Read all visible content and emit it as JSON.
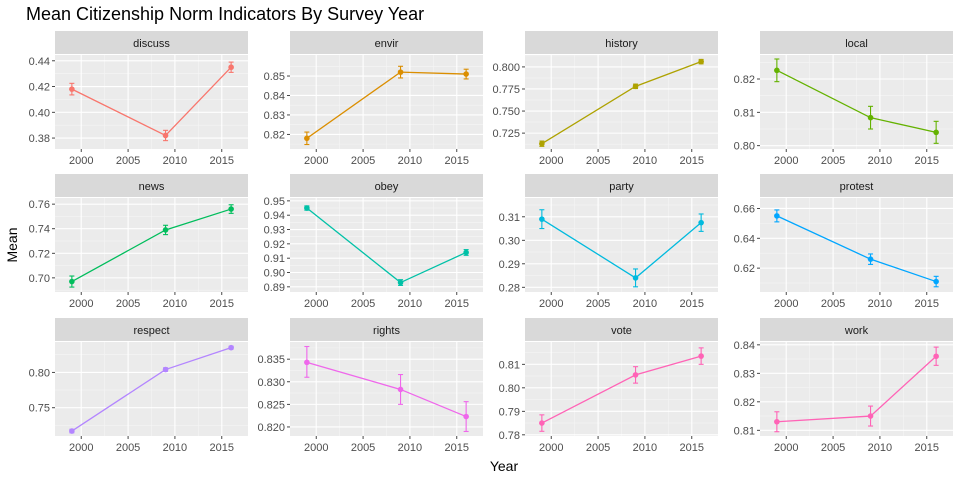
{
  "chart_data": {
    "type": "line",
    "title": "Mean Citizenship Norm Indicators By Survey Year",
    "xlabel": "Year",
    "ylabel": "Mean",
    "x": [
      1999,
      2009,
      2016
    ],
    "xticks": [
      2000,
      2005,
      2010,
      2015
    ],
    "xlim": [
      1997.2,
      2017.8
    ],
    "grid": true,
    "legend": "none",
    "facets": [
      {
        "name": "discuss",
        "color": "#F8766D",
        "ylim": [
          0.3715,
          0.4445
        ],
        "yticks": [
          0.38,
          0.4,
          0.42,
          0.44
        ],
        "ytick_labels": [
          "0.38",
          "0.40",
          "0.42",
          "0.44"
        ],
        "points": [
          {
            "x": 1999,
            "y": 0.418,
            "lo": 0.4135,
            "hi": 0.4225
          },
          {
            "x": 2009,
            "y": 0.382,
            "lo": 0.378,
            "hi": 0.386
          },
          {
            "x": 2016,
            "y": 0.435,
            "lo": 0.431,
            "hi": 0.439
          }
        ]
      },
      {
        "name": "envir",
        "color": "#DB8E00",
        "ylim": [
          0.8125,
          0.8608
        ],
        "yticks": [
          0.82,
          0.83,
          0.84,
          0.85
        ],
        "ytick_labels": [
          "0.82",
          "0.83",
          "0.84",
          "0.85"
        ],
        "points": [
          {
            "x": 1999,
            "y": 0.818,
            "lo": 0.8148,
            "hi": 0.8212
          },
          {
            "x": 2009,
            "y": 0.852,
            "lo": 0.849,
            "hi": 0.855
          },
          {
            "x": 2016,
            "y": 0.851,
            "lo": 0.8485,
            "hi": 0.8535
          }
        ]
      },
      {
        "name": "history",
        "color": "#AEA200",
        "ylim": [
          0.707,
          0.8135
        ],
        "yticks": [
          0.725,
          0.75,
          0.775,
          0.8
        ],
        "ytick_labels": [
          "0.725",
          "0.750",
          "0.775",
          "0.800"
        ],
        "points": [
          {
            "x": 1999,
            "y": 0.713,
            "lo": 0.71,
            "hi": 0.716
          },
          {
            "x": 2009,
            "y": 0.778,
            "lo": 0.7755,
            "hi": 0.7805
          },
          {
            "x": 2016,
            "y": 0.806,
            "lo": 0.8035,
            "hi": 0.8085
          }
        ]
      },
      {
        "name": "local",
        "color": "#64B200",
        "ylim": [
          0.799,
          0.8272
        ],
        "yticks": [
          0.8,
          0.81,
          0.82
        ],
        "ytick_labels": [
          "0.80",
          "0.81",
          "0.82"
        ],
        "points": [
          {
            "x": 1999,
            "y": 0.8226,
            "lo": 0.8192,
            "hi": 0.826
          },
          {
            "x": 2009,
            "y": 0.8084,
            "lo": 0.805,
            "hi": 0.8118
          },
          {
            "x": 2016,
            "y": 0.804,
            "lo": 0.8007,
            "hi": 0.8073
          }
        ]
      },
      {
        "name": "news",
        "color": "#00BD5C",
        "ylim": [
          0.6885,
          0.765
        ],
        "yticks": [
          0.7,
          0.72,
          0.74,
          0.76
        ],
        "ytick_labels": [
          "0.70",
          "0.72",
          "0.74",
          "0.76"
        ],
        "points": [
          {
            "x": 1999,
            "y": 0.697,
            "lo": 0.6925,
            "hi": 0.7015
          },
          {
            "x": 2009,
            "y": 0.739,
            "lo": 0.7352,
            "hi": 0.7428
          },
          {
            "x": 2016,
            "y": 0.756,
            "lo": 0.7525,
            "hi": 0.7595
          }
        ]
      },
      {
        "name": "obey",
        "color": "#00C1A7",
        "ylim": [
          0.8864,
          0.952
        ],
        "yticks": [
          0.89,
          0.9,
          0.91,
          0.92,
          0.93,
          0.94,
          0.95
        ],
        "ytick_labels": [
          "0.89",
          "0.90",
          "0.91",
          "0.92",
          "0.93",
          "0.94",
          "0.95"
        ],
        "points": [
          {
            "x": 1999,
            "y": 0.945,
            "lo": 0.9435,
            "hi": 0.9465
          },
          {
            "x": 2009,
            "y": 0.893,
            "lo": 0.891,
            "hi": 0.895
          },
          {
            "x": 2016,
            "y": 0.914,
            "lo": 0.912,
            "hi": 0.916
          }
        ]
      },
      {
        "name": "party",
        "color": "#00BADE",
        "ylim": [
          0.278,
          0.318
        ],
        "yticks": [
          0.28,
          0.29,
          0.3,
          0.31
        ],
        "ytick_labels": [
          "0.28",
          "0.29",
          "0.30",
          "0.31"
        ],
        "points": [
          {
            "x": 1999,
            "y": 0.309,
            "lo": 0.305,
            "hi": 0.313
          },
          {
            "x": 2009,
            "y": 0.284,
            "lo": 0.2802,
            "hi": 0.2878
          },
          {
            "x": 2016,
            "y": 0.3075,
            "lo": 0.3038,
            "hi": 0.3112
          }
        ]
      },
      {
        "name": "protest",
        "color": "#00A6FF",
        "ylim": [
          0.604,
          0.667
        ],
        "yticks": [
          0.62,
          0.64,
          0.66
        ],
        "ytick_labels": [
          "0.62",
          "0.64",
          "0.66"
        ],
        "points": [
          {
            "x": 1999,
            "y": 0.655,
            "lo": 0.651,
            "hi": 0.659
          },
          {
            "x": 2009,
            "y": 0.626,
            "lo": 0.6225,
            "hi": 0.6295
          },
          {
            "x": 2016,
            "y": 0.611,
            "lo": 0.6075,
            "hi": 0.6145
          }
        ]
      },
      {
        "name": "respect",
        "color": "#B385FF",
        "ylim": [
          0.71,
          0.843
        ],
        "yticks": [
          0.75,
          0.8
        ],
        "ytick_labels": [
          "0.75",
          "0.80"
        ],
        "points": [
          {
            "x": 1999,
            "y": 0.717,
            "lo": 0.7145,
            "hi": 0.7195
          },
          {
            "x": 2009,
            "y": 0.804,
            "lo": 0.8015,
            "hi": 0.8065
          },
          {
            "x": 2016,
            "y": 0.835,
            "lo": 0.833,
            "hi": 0.837
          }
        ]
      },
      {
        "name": "rights",
        "color": "#EF67EB",
        "ylim": [
          0.818,
          0.8388
        ],
        "yticks": [
          0.82,
          0.825,
          0.83,
          0.835
        ],
        "ytick_labels": [
          "0.820",
          "0.825",
          "0.830",
          "0.835"
        ],
        "points": [
          {
            "x": 1999,
            "y": 0.8343,
            "lo": 0.831,
            "hi": 0.8378
          },
          {
            "x": 2009,
            "y": 0.8283,
            "lo": 0.825,
            "hi": 0.8316
          },
          {
            "x": 2016,
            "y": 0.8223,
            "lo": 0.819,
            "hi": 0.8256
          }
        ]
      },
      {
        "name": "vote",
        "color": "#FF63B6",
        "ylim": [
          0.7795,
          0.8195
        ],
        "yticks": [
          0.78,
          0.79,
          0.8,
          0.81
        ],
        "ytick_labels": [
          "0.78",
          "0.79",
          "0.80",
          "0.81"
        ],
        "points": [
          {
            "x": 1999,
            "y": 0.785,
            "lo": 0.7815,
            "hi": 0.7885
          },
          {
            "x": 2009,
            "y": 0.8055,
            "lo": 0.802,
            "hi": 0.809
          },
          {
            "x": 2016,
            "y": 0.8135,
            "lo": 0.81,
            "hi": 0.817
          }
        ]
      },
      {
        "name": "work",
        "color": "#FF63B6",
        "ylim": [
          0.808,
          0.841
        ],
        "yticks": [
          0.81,
          0.82,
          0.83,
          0.84
        ],
        "ytick_labels": [
          "0.81",
          "0.82",
          "0.83",
          "0.84"
        ],
        "points": [
          {
            "x": 1999,
            "y": 0.813,
            "lo": 0.8095,
            "hi": 0.8165
          },
          {
            "x": 2009,
            "y": 0.815,
            "lo": 0.8115,
            "hi": 0.8185
          },
          {
            "x": 2016,
            "y": 0.836,
            "lo": 0.8328,
            "hi": 0.8392
          }
        ]
      }
    ]
  }
}
